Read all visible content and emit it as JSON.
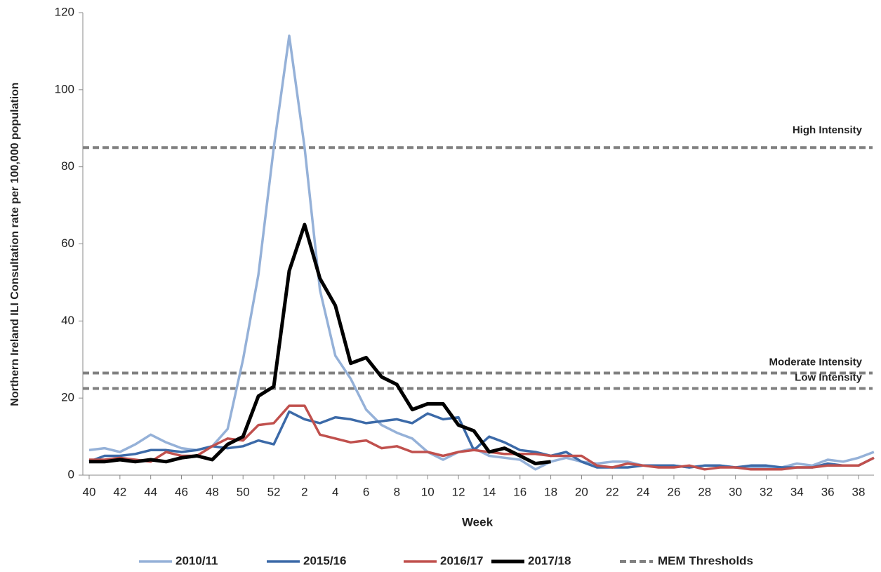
{
  "chart_data": {
    "type": "line",
    "y_label": "Northern Ireland ILI Consultation rate per 100,000 population",
    "x_label": "Week",
    "categories": [
      "40",
      null,
      "42",
      null,
      "44",
      null,
      "46",
      null,
      "48",
      null,
      "50",
      null,
      "52",
      null,
      "2",
      null,
      "4",
      null,
      "6",
      null,
      "8",
      null,
      "10",
      null,
      "12",
      null,
      "14",
      null,
      "16",
      null,
      "18",
      null,
      "20",
      null,
      "22",
      null,
      "24",
      null,
      "26",
      null,
      "28",
      null,
      "30",
      null,
      "32",
      null,
      "34",
      null,
      "36",
      null,
      "38",
      null
    ],
    "ylim": [
      0,
      120
    ],
    "yticks": [
      0,
      20,
      40,
      60,
      80,
      100,
      120
    ],
    "series": [
      {
        "name": "2010/11",
        "color": "#95b1d8",
        "values": [
          6.5,
          7,
          6,
          8,
          10.5,
          8.5,
          7,
          6.5,
          7.5,
          12,
          30,
          52,
          85,
          114,
          85,
          48,
          31,
          25,
          17,
          13,
          11,
          9.5,
          6,
          4,
          6,
          7,
          5,
          4.5,
          4,
          1.5,
          3.5,
          4.5,
          3.5,
          3,
          3.5,
          3.5,
          2.5,
          2.5,
          2.5,
          2,
          2.5,
          2.5,
          2,
          2,
          2,
          2,
          3,
          2.5,
          4,
          3.5,
          4.5,
          6
        ]
      },
      {
        "name": "2015/16",
        "color": "#3c6aa8",
        "values": [
          3.5,
          5,
          5,
          5.5,
          6.5,
          6.5,
          6,
          6.5,
          7.5,
          7,
          7.5,
          9,
          8,
          16.5,
          14.5,
          13.5,
          15,
          14.5,
          13.5,
          14,
          14.5,
          13.5,
          16,
          14.5,
          15,
          6.5,
          10,
          8.5,
          6.5,
          6,
          5,
          6,
          3.5,
          2,
          2,
          2,
          2.5,
          2.5,
          2.5,
          2,
          2.5,
          2.5,
          2,
          2.5,
          2.5,
          2,
          2,
          2,
          3,
          2.5,
          2.5,
          4.5
        ]
      },
      {
        "name": "2016/17",
        "color": "#c0504d",
        "values": [
          4,
          4,
          4.5,
          4,
          3.5,
          6,
          5,
          5,
          7.5,
          9.5,
          9,
          13,
          13.5,
          18,
          18,
          10.5,
          9.5,
          8.5,
          9,
          7,
          7.5,
          6,
          6,
          5,
          6,
          6.5,
          6,
          5.5,
          5.5,
          5.5,
          5,
          5,
          5,
          2.5,
          2,
          3,
          2.5,
          2,
          2,
          2.5,
          1.5,
          2,
          2,
          1.5,
          1.5,
          1.5,
          2,
          2,
          2.5,
          2.5,
          2.5,
          4.5
        ]
      },
      {
        "name": "2017/18",
        "color": "#000000",
        "values": [
          3.5,
          3.5,
          4,
          3.5,
          4,
          3.5,
          4.5,
          5,
          4,
          8,
          10,
          20.5,
          23,
          53,
          65,
          51,
          44,
          29,
          30.5,
          25.5,
          23.5,
          17,
          18.5,
          18.5,
          13,
          11.5,
          6,
          7,
          5,
          3,
          3.5,
          null,
          null,
          null,
          null,
          null,
          null,
          null,
          null,
          null,
          null,
          null,
          null,
          null,
          null,
          null,
          null,
          null,
          null,
          null,
          null,
          null
        ]
      }
    ],
    "threshold_legend": "MEM Thresholds",
    "threshold_color": "#808080",
    "thresholds": [
      {
        "label": "High Intensity",
        "value": 85
      },
      {
        "label": "Moderate  Intensity",
        "value": 26.5
      },
      {
        "label": "Low Intensity",
        "value": 22.5
      }
    ]
  }
}
